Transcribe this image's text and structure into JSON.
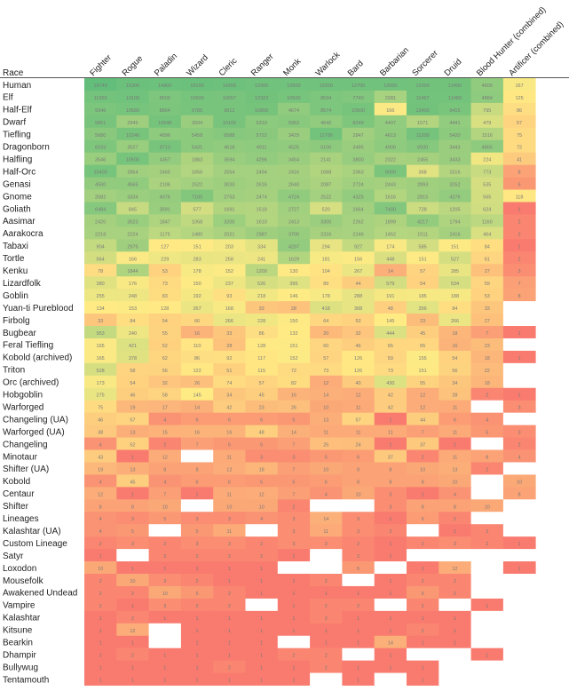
{
  "chart_data": {
    "type": "heatmap",
    "corner_label": "Race",
    "columns": [
      "Fighter",
      "Rogue",
      "Paladin",
      "Wizard",
      "Cleric",
      "Ranger",
      "Monk",
      "Warlock",
      "Bard",
      "Barbarian",
      "Sorcerer",
      "Druid",
      "Blood Hunter (combined)",
      "Artificer (combined)"
    ],
    "rows": [
      "Human",
      "Elf",
      "Half-Elf",
      "Dwarf",
      "Tiefling",
      "Dragonborn",
      "Halfling",
      "Half-Orc",
      "Genasi",
      "Gnome",
      "Goliath",
      "Aasimar",
      "Aarakocra",
      "Tabaxi",
      "Tortle",
      "Kenku",
      "Lizardfolk",
      "Goblin",
      "Yuan-ti Pureblood",
      "Firbolg",
      "Bugbear",
      "Feral Tiefling",
      "Kobold (archived)",
      "Triton",
      "Orc (archived)",
      "Hobgoblin",
      "Warforged",
      "Changeling (UA)",
      "Warforged (UA)",
      "Changeling",
      "Minotaur",
      "Shifter (UA)",
      "Kobold",
      "Centaur",
      "Shifter",
      "Lineages",
      "Kalashtar (UA)",
      "Custom Lineage",
      "Satyr",
      "Loxodon",
      "Mousefolk",
      "Awakened Undead",
      "Vampire",
      "Kalashtar",
      "Kitsune",
      "Bearkin",
      "Dhampir",
      "Bullywug",
      "Tentamouth"
    ],
    "values": [
      [
        19749,
        15300,
        14900,
        15100,
        14200,
        12900,
        12600,
        13200,
        12700,
        13000,
        12300,
        12400,
        4600,
        167
      ],
      [
        11350,
        13100,
        8500,
        10500,
        10057,
        12323,
        10500,
        8534,
        7740,
        2281,
        11467,
        11480,
        4884,
        125
      ],
      [
        9346,
        10580,
        8864,
        9785,
        9912,
        10800,
        4674,
        8574,
        10500,
        166,
        12400,
        9415,
        795,
        86
      ],
      [
        9851,
        2945,
        10648,
        3504,
        10100,
        5319,
        5953,
        4642,
        8249,
        4407,
        1571,
        4441,
        479,
        57
      ],
      [
        5680,
        10240,
        4896,
        5458,
        6588,
        5722,
        3429,
        11700,
        2847,
        4613,
        11200,
        5420,
        1516,
        75
      ],
      [
        8103,
        3527,
        9713,
        5431,
        4618,
        4911,
        4525,
        5100,
        3495,
        4900,
        6500,
        3443,
        4865,
        72
      ],
      [
        3546,
        10500,
        4357,
        1883,
        3594,
        4296,
        3454,
        2141,
        3800,
        2322,
        2455,
        3433,
        224,
        41
      ],
      [
        10400,
        2864,
        2465,
        1656,
        2554,
        2494,
        2416,
        1668,
        2063,
        9000,
        368,
        1516,
        773,
        8
      ],
      [
        4500,
        4565,
        2106,
        2522,
        3033,
        2616,
        2640,
        2087,
        2724,
        2443,
        2893,
        3252,
        535,
        5
      ],
      [
        2682,
        3334,
        4076,
        7100,
        2753,
        2474,
        4724,
        2522,
        4325,
        1616,
        2815,
        4276,
        565,
        118
      ],
      [
        6484,
        845,
        3591,
        577,
        1691,
        1518,
        2727,
        520,
        2664,
        7400,
        728,
        1205,
        624,
        1
      ],
      [
        2420,
        3523,
        1847,
        1058,
        3200,
        1610,
        2413,
        3300,
        2262,
        1899,
        4217,
        1794,
        1160,
        2
      ],
      [
        2218,
        2224,
        1175,
        1480,
        2021,
        2987,
        3700,
        2316,
        2246,
        1452,
        1511,
        2416,
        464,
        2
      ],
      [
        904,
        2975,
        127,
        151,
        203,
        334,
        4297,
        294,
        927,
        174,
        585,
        151,
        84,
        1
      ],
      [
        564,
        166,
        229,
        283,
        258,
        241,
        1629,
        181,
        156,
        448,
        151,
        527,
        61,
        2
      ],
      [
        78,
        1844,
        53,
        178,
        152,
        1200,
        130,
        104,
        267,
        14,
        57,
        285,
        27,
        3
      ],
      [
        380,
        176,
        73,
        150,
        237,
        526,
        395,
        89,
        44,
        579,
        54,
        534,
        59,
        7
      ],
      [
        255,
        248,
        83,
        192,
        93,
        218,
        146,
        178,
        288,
        191,
        185,
        188,
        53,
        8
      ],
      [
        134,
        153,
        128,
        267,
        168,
        33,
        28,
        418,
        308,
        48,
        356,
        84,
        33,
        0
      ],
      [
        33,
        84,
        54,
        66,
        266,
        228,
        150,
        64,
        53,
        145,
        23,
        266,
        27,
        0
      ],
      [
        953,
        240,
        55,
        16,
        33,
        86,
        132,
        20,
        32,
        444,
        45,
        18,
        7,
        1
      ],
      [
        165,
        421,
        52,
        110,
        28,
        128,
        151,
        60,
        46,
        65,
        65,
        16,
        23,
        0
      ],
      [
        165,
        378,
        62,
        86,
        92,
        117,
        152,
        57,
        126,
        59,
        155,
        54,
        18,
        1
      ],
      [
        528,
        58,
        56,
        122,
        51,
        115,
        72,
        73,
        126,
        73,
        151,
        56,
        22,
        0
      ],
      [
        173,
        54,
        32,
        26,
        74,
        57,
        82,
        12,
        40,
        430,
        55,
        34,
        18,
        0
      ],
      [
        275,
        46,
        58,
        145,
        34,
        45,
        16,
        14,
        12,
        42,
        12,
        28,
        2,
        1
      ],
      [
        75,
        19,
        17,
        14,
        42,
        23,
        26,
        10,
        11,
        42,
        12,
        11,
        0,
        3
      ],
      [
        46,
        57,
        4,
        6,
        6,
        6,
        5,
        13,
        57,
        1,
        44,
        6,
        4,
        0
      ],
      [
        38,
        13,
        15,
        16,
        16,
        48,
        14,
        11,
        11,
        11,
        7,
        11,
        5,
        3
      ],
      [
        4,
        52,
        2,
        7,
        5,
        5,
        7,
        25,
        24,
        1,
        37,
        1,
        0,
        2
      ],
      [
        43,
        1,
        12,
        0,
        11,
        3,
        3,
        5,
        6,
        37,
        2,
        11,
        8,
        4
      ],
      [
        19,
        13,
        8,
        8,
        12,
        18,
        7,
        10,
        8,
        8,
        10,
        13,
        2,
        0
      ],
      [
        4,
        45,
        4,
        6,
        6,
        5,
        5,
        6,
        8,
        8,
        8,
        10,
        0,
        10
      ],
      [
        12,
        1,
        7,
        1,
        11,
        12,
        7,
        4,
        10,
        3,
        1,
        4,
        0,
        8
      ],
      [
        8,
        8,
        10,
        0,
        10,
        10,
        2,
        0,
        0,
        3,
        8,
        8,
        10,
        0
      ],
      [
        4,
        3,
        5,
        3,
        3,
        4,
        3,
        14,
        3,
        1,
        6,
        2,
        0,
        0
      ],
      [
        4,
        5,
        0,
        5,
        11,
        0,
        3,
        11,
        3,
        2,
        0,
        1,
        2,
        0
      ],
      [
        2,
        3,
        2,
        3,
        3,
        2,
        3,
        3,
        2,
        1,
        2,
        3,
        2,
        1
      ],
      [
        1,
        0,
        2,
        2,
        2,
        2,
        1,
        0,
        2,
        1,
        0,
        0,
        0,
        0
      ],
      [
        10,
        1,
        1,
        1,
        1,
        1,
        0,
        0,
        5,
        0,
        1,
        12,
        0,
        1
      ],
      [
        2,
        10,
        3,
        2,
        1,
        1,
        1,
        2,
        0,
        1,
        2,
        2,
        0,
        0
      ],
      [
        2,
        2,
        10,
        5,
        2,
        1,
        1,
        1,
        1,
        1,
        5,
        2,
        0,
        0
      ],
      [
        2,
        1,
        3,
        2,
        2,
        0,
        1,
        2,
        2,
        0,
        2,
        0,
        1,
        0
      ],
      [
        1,
        2,
        1,
        1,
        1,
        1,
        1,
        2,
        1,
        1,
        1,
        1,
        0,
        0
      ],
      [
        1,
        12,
        0,
        1,
        1,
        1,
        1,
        1,
        1,
        1,
        2,
        1,
        0,
        0
      ],
      [
        1,
        1,
        0,
        1,
        1,
        1,
        0,
        1,
        1,
        14,
        1,
        1,
        0,
        0
      ],
      [
        1,
        2,
        1,
        1,
        1,
        1,
        2,
        2,
        0,
        1,
        0,
        0,
        1,
        0
      ],
      [
        1,
        1,
        1,
        1,
        2,
        1,
        1,
        2,
        1,
        1,
        1,
        0,
        0,
        0
      ],
      [
        1,
        1,
        1,
        1,
        1,
        1,
        1,
        0,
        1,
        0,
        1,
        0,
        0,
        0
      ]
    ],
    "color_scale": {
      "low": "#f8696b",
      "mid": "#ffeb84",
      "high": "#63be7b",
      "empty": "#ffffff"
    },
    "grid": false,
    "legend": "none"
  }
}
